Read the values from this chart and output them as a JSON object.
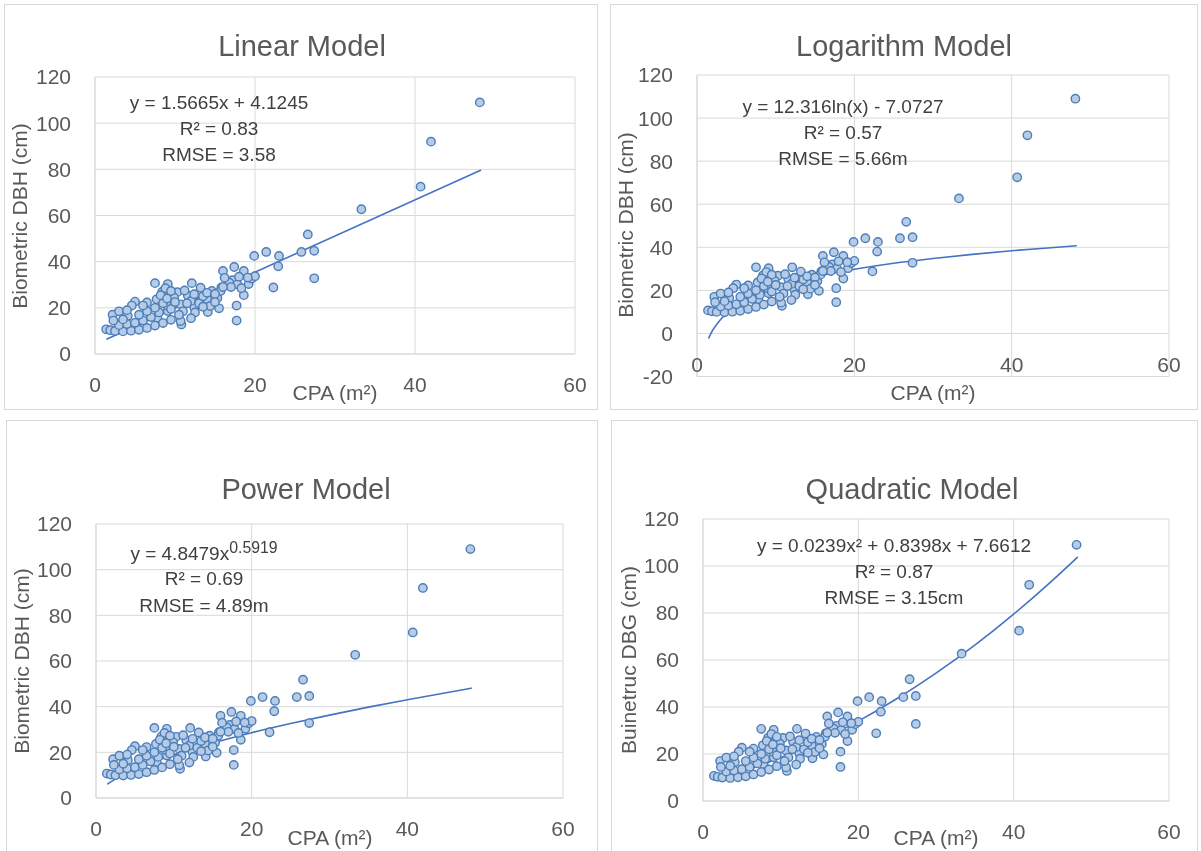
{
  "chart_data": [
    {
      "type": "scatter",
      "title": "Linear Model",
      "xlabel": "CPA (m²)",
      "ylabel": "Biometric DBH (cm)",
      "annotations": [
        "y = 1.5665x + 4.1245",
        "R² = 0.83",
        "RMSE = 3.58"
      ],
      "xlim": [
        0,
        60
      ],
      "xticks": [
        0,
        20,
        40,
        60
      ],
      "ylim": [
        0,
        120
      ],
      "yticks": [
        0,
        20,
        40,
        60,
        80,
        100,
        120
      ],
      "grid": true,
      "series": [
        {
          "type": "scatter",
          "color": "#4a7ebb",
          "marker": "circle",
          "x": [
            48.1,
            42.0,
            40.7,
            33.3,
            26.6,
            25.8,
            27.4,
            27.4,
            19.9,
            21.4,
            23.0,
            22.9,
            22.3,
            17.4,
            16.0,
            18.6,
            17.7,
            17.7,
            18.6,
            19.2,
            19.6,
            20.0,
            17.2,
            15.8,
            15.5,
            15.3,
            14.0,
            14.1,
            14.4,
            14.6,
            13.2,
            12.4,
            12.1,
            11.6,
            10.8,
            10.3,
            9.1,
            7.5,
            8.4,
            7.7,
            6.5,
            5.0,
            4.1,
            2.2,
            1.4,
            1.9,
            4.6,
            8.8,
            9.9,
            12.0,
            15.7,
            16.8,
            17.8,
            18.3,
            19.1,
            10.7,
            9.1,
            7.8,
            10.7,
            12.4,
            9.5,
            11.2,
            16.2,
            17.0,
            18.0,
            2.5,
            3.5,
            4.5,
            5.5,
            6.5,
            7.5,
            8.5,
            9.5,
            3.0,
            4.0,
            5.0,
            6.0,
            7.0,
            8.0,
            9.0,
            2.3,
            3.5,
            5.5,
            6.5,
            7.5,
            8.5,
            9.5,
            10.0,
            11.0,
            11.5,
            12.5,
            13.0,
            13.5,
            14.0,
            15.0,
            16.0,
            3.0,
            4.0,
            8.2,
            6.0,
            9.0,
            10.5,
            12.0,
            13.5,
            15.0
          ],
          "values": [
            109,
            92,
            72.5,
            62.7,
            51.8,
            44.2,
            44.7,
            32.8,
            42.5,
            44.2,
            42.5,
            38,
            28.8,
            37.7,
            36,
            36,
            14.5,
            21,
            25.5,
            30.3,
            32.7,
            33.7,
            32,
            28.8,
            19.8,
            24.2,
            23.7,
            18.2,
            20.8,
            27.3,
            28.7,
            20.2,
            30.7,
            25.3,
            12.8,
            26.8,
            30.3,
            30.7,
            27,
            23.7,
            22.3,
            22.7,
            16.5,
            17,
            10.7,
            10.3,
            21,
            28.5,
            24.4,
            23,
            27.3,
            30.9,
            30.2,
            28.5,
            33.1,
            21.5,
            18.6,
            15.7,
            14.3,
            25.9,
            27.3,
            27.5,
            33,
            29,
            33.5,
            10,
            9.8,
            10.1,
            10.5,
            11.3,
            12.3,
            13.4,
            14.8,
            12.5,
            13,
            13.5,
            14.5,
            16,
            18,
            21,
            14.5,
            15,
            17,
            18.5,
            20,
            22,
            19.5,
            22.5,
            18.5,
            22,
            18,
            22,
            25,
            26.5,
            26,
            29,
            18.5,
            19,
            25.5,
            21,
            24,
            17,
            15.5,
            20.5,
            22.5
          ]
        },
        {
          "type": "line",
          "color": "#4472c4",
          "line_style": "solid",
          "x": [
            1.5,
            48.2
          ],
          "values": [
            6.5,
            79.6
          ]
        }
      ]
    },
    {
      "type": "scatter",
      "title": "Logarithm Model",
      "xlabel": "CPA (m²)",
      "ylabel": "Biometric DBH (cm)",
      "annotations": [
        "y = 12.316ln(x) - 7.0727",
        "R² = 0.57",
        "RMSE = 5.66m"
      ],
      "xlim": [
        0,
        60
      ],
      "xticks": [
        0,
        20,
        40,
        60
      ],
      "ylim": [
        -20,
        120
      ],
      "yticks": [
        -20,
        0,
        20,
        40,
        60,
        80,
        100,
        120
      ],
      "grid": true,
      "series": [
        {
          "type": "scatter",
          "color": "#4a7ebb",
          "marker": "circle",
          "x": [
            48.1,
            42.0,
            40.7,
            33.3,
            26.6,
            25.8,
            27.4,
            27.4,
            19.9,
            21.4,
            23.0,
            22.9,
            22.3,
            17.4,
            16.0,
            18.6,
            17.7,
            17.7,
            18.6,
            19.2,
            19.6,
            20.0,
            17.2,
            15.8,
            15.5,
            15.3,
            14.0,
            14.1,
            14.4,
            14.6,
            13.2,
            12.4,
            12.1,
            11.6,
            10.8,
            10.3,
            9.1,
            7.5,
            8.4,
            7.7,
            6.5,
            5.0,
            4.1,
            2.2,
            1.4,
            1.9,
            4.6,
            8.8,
            9.9,
            12.0,
            15.7,
            16.8,
            17.8,
            18.3,
            19.1,
            10.7,
            9.1,
            7.8,
            10.7,
            12.4,
            9.5,
            11.2,
            16.2,
            17.0,
            18.0,
            2.5,
            3.5,
            4.5,
            5.5,
            6.5,
            7.5,
            8.5,
            9.5,
            3.0,
            4.0,
            5.0,
            6.0,
            7.0,
            8.0,
            9.0,
            2.3,
            3.5,
            5.5,
            6.5,
            7.5,
            8.5,
            9.5,
            10.0,
            11.0,
            11.5,
            12.5,
            13.0,
            13.5,
            14.0,
            15.0,
            16.0,
            3.0,
            4.0,
            8.2,
            6.0,
            9.0,
            10.5,
            12.0,
            13.5,
            15.0
          ],
          "values": [
            109,
            92,
            72.5,
            62.7,
            51.8,
            44.2,
            44.7,
            32.8,
            42.5,
            44.2,
            42.5,
            38,
            28.8,
            37.7,
            36,
            36,
            14.5,
            21,
            25.5,
            30.3,
            32.7,
            33.7,
            32,
            28.8,
            19.8,
            24.2,
            23.7,
            18.2,
            20.8,
            27.3,
            28.7,
            20.2,
            30.7,
            25.3,
            12.8,
            26.8,
            30.3,
            30.7,
            27,
            23.7,
            22.3,
            22.7,
            16.5,
            17,
            10.7,
            10.3,
            21,
            28.5,
            24.4,
            23,
            27.3,
            30.9,
            30.2,
            28.5,
            33.1,
            21.5,
            18.6,
            15.7,
            14.3,
            25.9,
            27.3,
            27.5,
            33,
            29,
            33.5,
            10,
            9.8,
            10.1,
            10.5,
            11.3,
            12.3,
            13.4,
            14.8,
            12.5,
            13,
            13.5,
            14.5,
            16,
            18,
            21,
            14.5,
            15,
            17,
            18.5,
            20,
            22,
            19.5,
            22.5,
            18.5,
            22,
            18,
            22,
            25,
            26.5,
            26,
            29,
            18.5,
            19,
            25.5,
            21,
            24,
            17,
            15.5,
            20.5,
            22.5
          ]
        },
        {
          "type": "line",
          "color": "#4472c4",
          "line_style": "solid",
          "x": [
            1.5,
            2,
            3,
            4,
            5,
            6,
            8,
            10,
            12,
            15,
            20,
            25,
            30,
            35,
            40,
            45,
            48.2
          ],
          "values": [
            -2.1,
            1.5,
            6.5,
            10.0,
            12.7,
            15.0,
            18.5,
            21.3,
            23.5,
            26.3,
            29.8,
            32.6,
            34.8,
            36.7,
            38.4,
            39.8,
            40.7
          ]
        }
      ]
    },
    {
      "type": "scatter",
      "title": "Power Model",
      "xlabel": "CPA (m²)",
      "ylabel": "Biometric DBH (cm)",
      "annotations": [
        "y = 4.8479x$^{0.5919}$",
        "R² = 0.69",
        "RMSE = 4.89m"
      ],
      "xlim": [
        0,
        60
      ],
      "xticks": [
        0,
        20,
        40,
        60
      ],
      "ylim": [
        0,
        120
      ],
      "yticks": [
        0,
        20,
        40,
        60,
        80,
        100,
        120
      ],
      "grid": true,
      "series": [
        {
          "type": "scatter",
          "color": "#4a7ebb",
          "marker": "circle",
          "x": [
            48.1,
            42.0,
            40.7,
            33.3,
            26.6,
            25.8,
            27.4,
            27.4,
            19.9,
            21.4,
            23.0,
            22.9,
            22.3,
            17.4,
            16.0,
            18.6,
            17.7,
            17.7,
            18.6,
            19.2,
            19.6,
            20.0,
            17.2,
            15.8,
            15.5,
            15.3,
            14.0,
            14.1,
            14.4,
            14.6,
            13.2,
            12.4,
            12.1,
            11.6,
            10.8,
            10.3,
            9.1,
            7.5,
            8.4,
            7.7,
            6.5,
            5.0,
            4.1,
            2.2,
            1.4,
            1.9,
            4.6,
            8.8,
            9.9,
            12.0,
            15.7,
            16.8,
            17.8,
            18.3,
            19.1,
            10.7,
            9.1,
            7.8,
            10.7,
            12.4,
            9.5,
            11.2,
            16.2,
            17.0,
            18.0,
            2.5,
            3.5,
            4.5,
            5.5,
            6.5,
            7.5,
            8.5,
            9.5,
            3.0,
            4.0,
            5.0,
            6.0,
            7.0,
            8.0,
            9.0,
            2.3,
            3.5,
            5.5,
            6.5,
            7.5,
            8.5,
            9.5,
            10.0,
            11.0,
            11.5,
            12.5,
            13.0,
            13.5,
            14.0,
            15.0,
            16.0,
            3.0,
            4.0,
            8.2,
            6.0,
            9.0,
            10.5,
            12.0,
            13.5,
            15.0
          ],
          "values": [
            109,
            92,
            72.5,
            62.7,
            51.8,
            44.2,
            44.7,
            32.8,
            42.5,
            44.2,
            42.5,
            38,
            28.8,
            37.7,
            36,
            36,
            14.5,
            21,
            25.5,
            30.3,
            32.7,
            33.7,
            32,
            28.8,
            19.8,
            24.2,
            23.7,
            18.2,
            20.8,
            27.3,
            28.7,
            20.2,
            30.7,
            25.3,
            12.8,
            26.8,
            30.3,
            30.7,
            27,
            23.7,
            22.3,
            22.7,
            16.5,
            17,
            10.7,
            10.3,
            21,
            28.5,
            24.4,
            23,
            27.3,
            30.9,
            30.2,
            28.5,
            33.1,
            21.5,
            18.6,
            15.7,
            14.3,
            25.9,
            27.3,
            27.5,
            33,
            29,
            33.5,
            10,
            9.8,
            10.1,
            10.5,
            11.3,
            12.3,
            13.4,
            14.8,
            12.5,
            13,
            13.5,
            14.5,
            16,
            18,
            21,
            14.5,
            15,
            17,
            18.5,
            20,
            22,
            19.5,
            22.5,
            18.5,
            22,
            18,
            22,
            25,
            26.5,
            26,
            29,
            18.5,
            19,
            25.5,
            21,
            24,
            17,
            15.5,
            20.5,
            22.5
          ]
        },
        {
          "type": "line",
          "color": "#4472c4",
          "line_style": "solid",
          "x": [
            1.5,
            2,
            3,
            4,
            5,
            6,
            8,
            10,
            12,
            15,
            20,
            25,
            30,
            35,
            40,
            45,
            48.2
          ],
          "values": [
            6.2,
            7.3,
            9.3,
            11.0,
            12.6,
            14.0,
            16.6,
            18.9,
            21.1,
            24.1,
            28.6,
            32.6,
            36.3,
            39.8,
            43.0,
            46.1,
            48.1
          ]
        }
      ]
    },
    {
      "type": "scatter",
      "title": "Quadratic Model",
      "xlabel": "CPA (m²)",
      "ylabel": "Buinetruc DBG (cm)",
      "annotations": [
        "y = 0.0239x² + 0.8398x + 7.6612",
        "R² = 0.87",
        "RMSE = 3.15cm"
      ],
      "xlim": [
        0,
        60
      ],
      "xticks": [
        0,
        20,
        40,
        60
      ],
      "ylim": [
        0,
        120
      ],
      "yticks": [
        0,
        20,
        40,
        60,
        80,
        100,
        120
      ],
      "grid": true,
      "series": [
        {
          "type": "scatter",
          "color": "#4a7ebb",
          "marker": "circle",
          "x": [
            48.1,
            42.0,
            40.7,
            33.3,
            26.6,
            25.8,
            27.4,
            27.4,
            19.9,
            21.4,
            23.0,
            22.9,
            22.3,
            17.4,
            16.0,
            18.6,
            17.7,
            17.7,
            18.6,
            19.2,
            19.6,
            20.0,
            17.2,
            15.8,
            15.5,
            15.3,
            14.0,
            14.1,
            14.4,
            14.6,
            13.2,
            12.4,
            12.1,
            11.6,
            10.8,
            10.3,
            9.1,
            7.5,
            8.4,
            7.7,
            6.5,
            5.0,
            4.1,
            2.2,
            1.4,
            1.9,
            4.6,
            8.8,
            9.9,
            12.0,
            15.7,
            16.8,
            17.8,
            18.3,
            19.1,
            10.7,
            9.1,
            7.8,
            10.7,
            12.4,
            9.5,
            11.2,
            16.2,
            17.0,
            18.0,
            2.5,
            3.5,
            4.5,
            5.5,
            6.5,
            7.5,
            8.5,
            9.5,
            3.0,
            4.0,
            5.0,
            6.0,
            7.0,
            8.0,
            9.0,
            2.3,
            3.5,
            5.5,
            6.5,
            7.5,
            8.5,
            9.5,
            10.0,
            11.0,
            11.5,
            12.5,
            13.0,
            13.5,
            14.0,
            15.0,
            16.0,
            3.0,
            4.0,
            8.2,
            6.0,
            9.0,
            10.5,
            12.0,
            13.5,
            15.0
          ],
          "values": [
            109,
            92,
            72.5,
            62.7,
            51.8,
            44.2,
            44.7,
            32.8,
            42.5,
            44.2,
            42.5,
            38,
            28.8,
            37.7,
            36,
            36,
            14.5,
            21,
            25.5,
            30.3,
            32.7,
            33.7,
            32,
            28.8,
            19.8,
            24.2,
            23.7,
            18.2,
            20.8,
            27.3,
            28.7,
            20.2,
            30.7,
            25.3,
            12.8,
            26.8,
            30.3,
            30.7,
            27,
            23.7,
            22.3,
            22.7,
            16.5,
            17,
            10.7,
            10.3,
            21,
            28.5,
            24.4,
            23,
            27.3,
            30.9,
            30.2,
            28.5,
            33.1,
            21.5,
            18.6,
            15.7,
            14.3,
            25.9,
            27.3,
            27.5,
            33,
            29,
            33.5,
            10,
            9.8,
            10.1,
            10.5,
            11.3,
            12.3,
            13.4,
            14.8,
            12.5,
            13,
            13.5,
            14.5,
            16,
            18,
            21,
            14.5,
            15,
            17,
            18.5,
            20,
            22,
            19.5,
            22.5,
            18.5,
            22,
            18,
            22,
            25,
            26.5,
            26,
            29,
            18.5,
            19,
            25.5,
            21,
            24,
            17,
            15.5,
            20.5,
            22.5
          ]
        },
        {
          "type": "line",
          "color": "#4472c4",
          "line_style": "solid",
          "x": [
            1.5,
            2,
            3,
            4,
            5,
            6,
            8,
            10,
            12,
            15,
            20,
            25,
            30,
            35,
            40,
            45,
            48.2
          ],
          "values": [
            9.0,
            9.4,
            10.4,
            11.4,
            12.5,
            13.6,
            15.9,
            18.5,
            21.2,
            25.6,
            34.0,
            43.6,
            54.4,
            66.3,
            79.5,
            93.9,
            103.7
          ]
        }
      ]
    }
  ]
}
